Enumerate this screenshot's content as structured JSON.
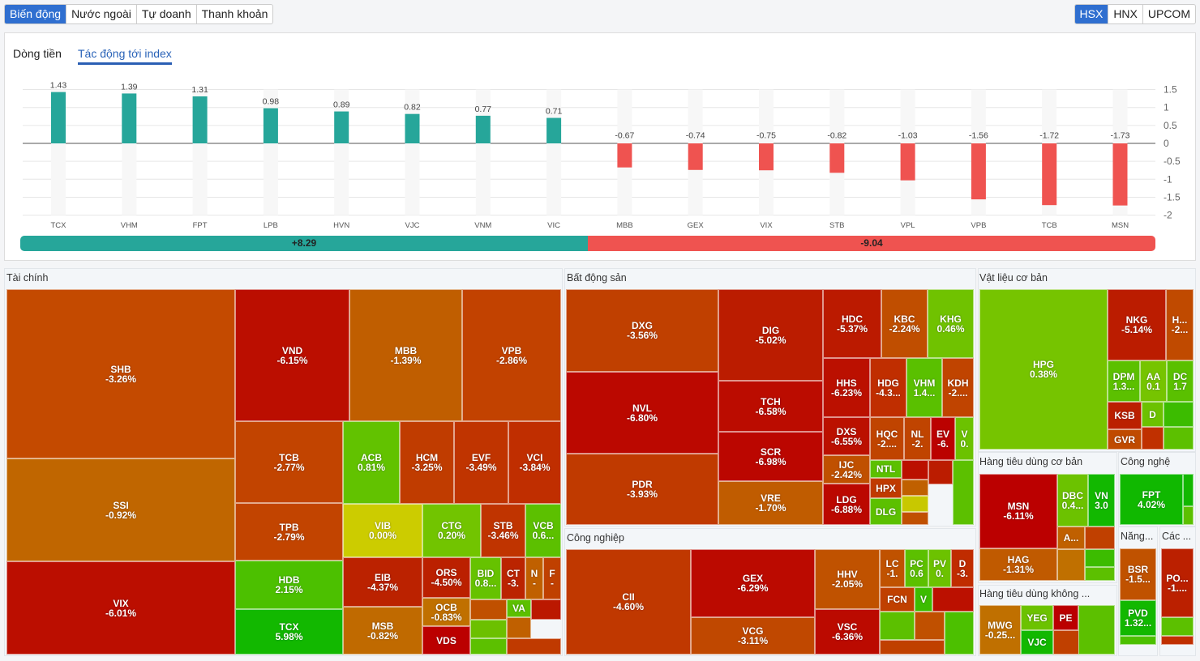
{
  "top_tabs": [
    "Biến động",
    "Nước ngoài",
    "Tự doanh",
    "Thanh khoản"
  ],
  "exchanges": [
    "HSX",
    "HNX",
    "UPCOM"
  ],
  "panel_tabs": [
    "Dòng tiền",
    "Tác động tới index"
  ],
  "colors": {
    "accent": "#2f6fd0",
    "up": "#26a69a",
    "down": "#ef5350"
  },
  "chart_data": {
    "type": "bar",
    "categories": [
      "TCX",
      "VHM",
      "FPT",
      "LPB",
      "HVN",
      "VJC",
      "VNM",
      "VIC",
      "MBB",
      "GEX",
      "VIX",
      "STB",
      "VPL",
      "VPB",
      "TCB",
      "MSN"
    ],
    "values": [
      1.43,
      1.39,
      1.31,
      0.98,
      0.89,
      0.82,
      0.77,
      0.71,
      -0.67,
      -0.74,
      -0.75,
      -0.82,
      -1.03,
      -1.56,
      -1.72,
      -1.73
    ],
    "yticks": [
      "1.5",
      "1",
      "0.5",
      "0",
      "-0.5",
      "-1",
      "-1.5",
      "-2"
    ],
    "ylim": [
      -2,
      1.5
    ],
    "grid": true,
    "total_up": "+8.29",
    "total_down": "-9.04"
  },
  "treemap": {
    "sections": [
      {
        "title": "Tài chính",
        "tiles": [
          {
            "t": "SHB",
            "c": "-3.26%",
            "color": "#c44a00"
          },
          {
            "t": "SSI",
            "c": "-0.92%",
            "color": "#c06600"
          },
          {
            "t": "VIX",
            "c": "-6.01%",
            "color": "#bb0e00"
          },
          {
            "t": "VND",
            "c": "-6.15%",
            "color": "#bb0e00"
          },
          {
            "t": "MBB",
            "c": "-1.39%",
            "color": "#c05e00"
          },
          {
            "t": "VPB",
            "c": "-2.86%",
            "color": "#c24200"
          },
          {
            "t": "TCB",
            "c": "-2.77%",
            "color": "#c24400"
          },
          {
            "t": "TPB",
            "c": "-2.79%",
            "color": "#c24400"
          },
          {
            "t": "HDB",
            "c": "2.15%",
            "color": "#4cc000"
          },
          {
            "t": "TCX",
            "c": "5.98%",
            "color": "#12b800"
          },
          {
            "t": "ACB",
            "c": "0.81%",
            "color": "#62c200"
          },
          {
            "t": "HCM",
            "c": "-3.25%",
            "color": "#c03c00"
          },
          {
            "t": "EVF",
            "c": "-3.49%",
            "color": "#c03400"
          },
          {
            "t": "VCI",
            "c": "-3.84%",
            "color": "#c02e00"
          },
          {
            "t": "VIB",
            "c": "0.00%",
            "color": "#cccc00"
          },
          {
            "t": "CTG",
            "c": "0.20%",
            "color": "#72c400"
          },
          {
            "t": "STB",
            "c": "-3.46%",
            "color": "#c03400"
          },
          {
            "t": "VCB",
            "c": "0.6...",
            "color": "#5cc000"
          },
          {
            "t": "EIB",
            "c": "-4.37%",
            "color": "#bb2200"
          },
          {
            "t": "MSB",
            "c": "-0.82%",
            "color": "#c06a00"
          },
          {
            "t": "ORS",
            "c": "-4.50%",
            "color": "#bb2000"
          },
          {
            "t": "OCB",
            "c": "-0.83%",
            "color": "#c07000"
          },
          {
            "t": "VDS",
            "c": "",
            "color": "#bb0000"
          },
          {
            "t": "BID",
            "c": "0.8...",
            "color": "#66c200"
          },
          {
            "t": "CT",
            "c": "-3.",
            "color": "#bb2400"
          },
          {
            "t": "N",
            "c": "-",
            "color": "#c06000"
          },
          {
            "t": "F",
            "c": "-",
            "color": "#c04000"
          },
          {
            "t": "VA",
            "c": "",
            "color": "#5cc000"
          },
          {
            "t": "",
            "c": "",
            "color": "#c05000"
          },
          {
            "t": "",
            "c": "",
            "color": "#6cc000"
          },
          {
            "t": "",
            "c": "",
            "color": "#bb1800"
          },
          {
            "t": "",
            "c": "",
            "color": "#c06000"
          },
          {
            "t": "",
            "c": "",
            "color": "#5cc000"
          },
          {
            "t": "",
            "c": "",
            "color": "#c03a00"
          }
        ]
      },
      {
        "title": "Bất động sản",
        "tiles": [
          {
            "t": "DXG",
            "c": "-3.56%",
            "color": "#c04000"
          },
          {
            "t": "NVL",
            "c": "-6.80%",
            "color": "#bb0800"
          },
          {
            "t": "PDR",
            "c": "-3.93%",
            "color": "#c03a00"
          },
          {
            "t": "DIG",
            "c": "-5.02%",
            "color": "#bb1c00"
          },
          {
            "t": "TCH",
            "c": "-6.58%",
            "color": "#bb0c00"
          },
          {
            "t": "SCR",
            "c": "-6.98%",
            "color": "#bb0600"
          },
          {
            "t": "VRE",
            "c": "-1.70%",
            "color": "#c05c00"
          },
          {
            "t": "HDC",
            "c": "-5.37%",
            "color": "#bb1a00"
          },
          {
            "t": "KBC",
            "c": "-2.24%",
            "color": "#c04e00"
          },
          {
            "t": "KHG",
            "c": "0.46%",
            "color": "#70c200"
          },
          {
            "t": "HHS",
            "c": "-6.23%",
            "color": "#bb1000"
          },
          {
            "t": "HDG",
            "c": "-4.3...",
            "color": "#c02e00"
          },
          {
            "t": "VHM",
            "c": "1.4...",
            "color": "#5ac000"
          },
          {
            "t": "KDH",
            "c": "-2....",
            "color": "#c04400"
          },
          {
            "t": "DXS",
            "c": "-6.55%",
            "color": "#bb1000"
          },
          {
            "t": "HQC",
            "c": "-2....",
            "color": "#c04400"
          },
          {
            "t": "NL",
            "c": "-2.",
            "color": "#c04400"
          },
          {
            "t": "EV",
            "c": "-6.",
            "color": "#bb0200"
          },
          {
            "t": "V",
            "c": "0.",
            "color": "#6cc200"
          },
          {
            "t": "IJC",
            "c": "-2.42%",
            "color": "#c05000"
          },
          {
            "t": "LDG",
            "c": "-6.88%",
            "color": "#bb0800"
          },
          {
            "t": "NTL",
            "c": "",
            "color": "#5cc000"
          },
          {
            "t": "HPX",
            "c": "",
            "color": "#c03a00"
          },
          {
            "t": "DLG",
            "c": "",
            "color": "#5cc000"
          },
          {
            "t": "",
            "c": "",
            "color": "#bb1000"
          },
          {
            "t": "",
            "c": "",
            "color": "#c06000"
          },
          {
            "t": "",
            "c": "",
            "color": "#c8c800"
          },
          {
            "t": "",
            "c": "",
            "color": "#bb1c00"
          },
          {
            "t": "",
            "c": "",
            "color": "#c05000"
          },
          {
            "t": "",
            "c": "",
            "color": "#5cc000"
          }
        ]
      },
      {
        "title": "Công nghiệp",
        "tiles": [
          {
            "t": "CII",
            "c": "-4.60%",
            "color": "#c03800"
          },
          {
            "t": "GEX",
            "c": "-6.29%",
            "color": "#bb0a00"
          },
          {
            "t": "VCG",
            "c": "-3.11%",
            "color": "#c04800"
          },
          {
            "t": "HHV",
            "c": "-2.05%",
            "color": "#c05200"
          },
          {
            "t": "VSC",
            "c": "-6.36%",
            "color": "#bb0a00"
          },
          {
            "t": "LC",
            "c": "-1.",
            "color": "#c05200"
          },
          {
            "t": "PC",
            "c": "0.6",
            "color": "#5cc000"
          },
          {
            "t": "PV",
            "c": "0.",
            "color": "#6cc200"
          },
          {
            "t": "D",
            "c": "-3.",
            "color": "#c02c00"
          },
          {
            "t": "FCN",
            "c": "",
            "color": "#c04000"
          },
          {
            "t": "V",
            "c": "",
            "color": "#3cbc00"
          },
          {
            "t": "",
            "c": "",
            "color": "#bb1000"
          },
          {
            "t": "",
            "c": "",
            "color": "#5cc000"
          },
          {
            "t": "",
            "c": "",
            "color": "#c05000"
          },
          {
            "t": "",
            "c": "",
            "color": "#4cc000"
          },
          {
            "t": "",
            "c": "",
            "color": "#c04000"
          }
        ]
      },
      {
        "title": "Vật liệu cơ bản",
        "tiles": [
          {
            "t": "HPG",
            "c": "0.38%",
            "color": "#76c400"
          },
          {
            "t": "NKG",
            "c": "-5.14%",
            "color": "#bb1c00"
          },
          {
            "t": "H...",
            "c": "-2...",
            "color": "#c04a00"
          },
          {
            "t": "DPM",
            "c": "1.3...",
            "color": "#5cc000"
          },
          {
            "t": "AA",
            "c": "0.1",
            "color": "#76c400"
          },
          {
            "t": "DC",
            "c": "1.7",
            "color": "#5ac000"
          },
          {
            "t": "KSB",
            "c": "",
            "color": "#bb2000"
          },
          {
            "t": "GVR",
            "c": "",
            "color": "#c04a00"
          },
          {
            "t": "D",
            "c": "",
            "color": "#6cc200"
          },
          {
            "t": "",
            "c": "",
            "color": "#3cbc00"
          },
          {
            "t": "",
            "c": "",
            "color": "#c03000"
          },
          {
            "t": "",
            "c": "",
            "color": "#5cc000"
          }
        ]
      },
      {
        "title": "Hàng tiêu dùng cơ bản",
        "tiles": [
          {
            "t": "MSN",
            "c": "-6.11%",
            "color": "#bb0000"
          },
          {
            "t": "HAG",
            "c": "-1.31%",
            "color": "#c05a00"
          },
          {
            "t": "DBC",
            "c": "0.4...",
            "color": "#6cc200"
          },
          {
            "t": "VN",
            "c": "3.0",
            "color": "#12b800"
          },
          {
            "t": "A...",
            "c": "",
            "color": "#c06000"
          },
          {
            "t": "",
            "c": "",
            "color": "#c04000"
          },
          {
            "t": "",
            "c": "",
            "color": "#3cbc00"
          },
          {
            "t": "",
            "c": "",
            "color": "#c07000"
          },
          {
            "t": "",
            "c": "",
            "color": "#5cc000"
          }
        ]
      },
      {
        "title": "Hàng tiêu dùng không ...",
        "tiles": [
          {
            "t": "MWG",
            "c": "-0.25...",
            "color": "#c07000"
          },
          {
            "t": "YEG",
            "c": "",
            "color": "#6cc200"
          },
          {
            "t": "VJC",
            "c": "",
            "color": "#12b800"
          },
          {
            "t": "PE",
            "c": "",
            "color": "#bb0000"
          },
          {
            "t": "",
            "c": "",
            "color": "#c04000"
          },
          {
            "t": "",
            "c": "",
            "color": "#5cc000"
          }
        ]
      },
      {
        "title": "Công nghệ",
        "tiles": [
          {
            "t": "FPT",
            "c": "4.02%",
            "color": "#10b800"
          },
          {
            "t": "",
            "c": "",
            "color": "#12b800"
          },
          {
            "t": "",
            "c": "",
            "color": "#5cc000"
          }
        ]
      },
      {
        "title": "Năng...",
        "tiles": [
          {
            "t": "BSR",
            "c": "-1.5...",
            "color": "#c05200"
          },
          {
            "t": "PVD",
            "c": "1.32...",
            "color": "#12b800"
          },
          {
            "t": "",
            "c": "",
            "color": "#4cc000"
          }
        ]
      },
      {
        "title": "Các ...",
        "tiles": [
          {
            "t": "PO...",
            "c": "-1....",
            "color": "#bb2000"
          },
          {
            "t": "",
            "c": "",
            "color": "#5cc000"
          },
          {
            "t": "",
            "c": "",
            "color": "#c03000"
          }
        ]
      }
    ]
  }
}
